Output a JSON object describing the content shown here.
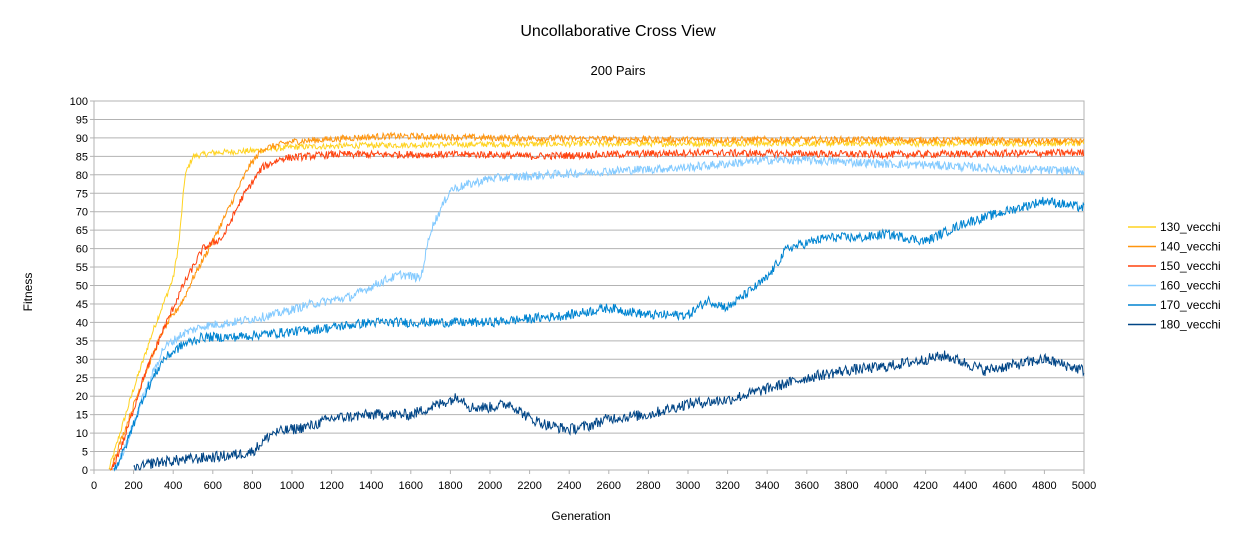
{
  "chart_data": {
    "type": "line",
    "title": "Uncollaborative Cross View",
    "subtitle": "200 Pairs",
    "xlabel": "Generation",
    "ylabel": "Fitness",
    "xlim": [
      0,
      5000
    ],
    "ylim": [
      0,
      100
    ],
    "xticks": [
      0,
      200,
      400,
      600,
      800,
      1000,
      1200,
      1400,
      1600,
      1800,
      2000,
      2200,
      2400,
      2600,
      2800,
      3000,
      3200,
      3400,
      3600,
      3800,
      4000,
      4200,
      4400,
      4600,
      4800,
      5000
    ],
    "yticks": [
      0,
      5,
      10,
      15,
      20,
      25,
      30,
      35,
      40,
      45,
      50,
      55,
      60,
      65,
      70,
      75,
      80,
      85,
      90,
      95,
      100
    ],
    "grid": true,
    "legend_position": "right",
    "series": [
      {
        "name": "130_vecchi",
        "color": "#ffd320",
        "noise": 0.8,
        "points": [
          [
            75,
            0
          ],
          [
            120,
            8
          ],
          [
            200,
            22
          ],
          [
            300,
            38
          ],
          [
            400,
            52
          ],
          [
            430,
            62
          ],
          [
            460,
            80
          ],
          [
            500,
            85
          ],
          [
            600,
            86
          ],
          [
            800,
            86.5
          ],
          [
            1000,
            87.5
          ],
          [
            1400,
            88
          ],
          [
            2000,
            88.3
          ],
          [
            3000,
            88.5
          ],
          [
            4000,
            88.5
          ],
          [
            5000,
            88.5
          ]
        ]
      },
      {
        "name": "140_vecchi",
        "color": "#ff950e",
        "noise": 0.9,
        "points": [
          [
            80,
            0
          ],
          [
            150,
            10
          ],
          [
            250,
            25
          ],
          [
            350,
            38
          ],
          [
            450,
            46
          ],
          [
            500,
            52
          ],
          [
            600,
            62
          ],
          [
            700,
            73
          ],
          [
            780,
            82
          ],
          [
            850,
            87
          ],
          [
            1000,
            89
          ],
          [
            1300,
            90
          ],
          [
            1500,
            90.5
          ],
          [
            2000,
            90
          ],
          [
            3000,
            89.5
          ],
          [
            4000,
            89.5
          ],
          [
            5000,
            89
          ]
        ]
      },
      {
        "name": "150_vecchi",
        "color": "#ff420e",
        "noise": 1.0,
        "points": [
          [
            90,
            0
          ],
          [
            150,
            8
          ],
          [
            250,
            25
          ],
          [
            350,
            38
          ],
          [
            450,
            50
          ],
          [
            550,
            60
          ],
          [
            650,
            63
          ],
          [
            750,
            74
          ],
          [
            850,
            82
          ],
          [
            950,
            84.5
          ],
          [
            1200,
            85.5
          ],
          [
            2000,
            85.5
          ],
          [
            2200,
            85
          ],
          [
            2600,
            85.5
          ],
          [
            3000,
            86
          ],
          [
            4000,
            85.5
          ],
          [
            5000,
            86
          ]
        ]
      },
      {
        "name": "160_vecchi",
        "color": "#83caff",
        "noise": 1.2,
        "points": [
          [
            100,
            0
          ],
          [
            150,
            5
          ],
          [
            250,
            20
          ],
          [
            350,
            33
          ],
          [
            450,
            37
          ],
          [
            550,
            39
          ],
          [
            700,
            40
          ],
          [
            900,
            42
          ],
          [
            1100,
            45
          ],
          [
            1300,
            47
          ],
          [
            1450,
            51
          ],
          [
            1550,
            53
          ],
          [
            1650,
            52
          ],
          [
            1700,
            65
          ],
          [
            1800,
            76
          ],
          [
            2000,
            79
          ],
          [
            2300,
            80
          ],
          [
            2600,
            81
          ],
          [
            3000,
            82
          ],
          [
            3400,
            84
          ],
          [
            3600,
            84
          ],
          [
            3800,
            83.5
          ],
          [
            4000,
            83
          ],
          [
            4300,
            82.5
          ],
          [
            4600,
            81.5
          ],
          [
            5000,
            81
          ]
        ]
      },
      {
        "name": "170_vecchi",
        "color": "#0084d1",
        "noise": 1.3,
        "points": [
          [
            100,
            0
          ],
          [
            150,
            5
          ],
          [
            250,
            20
          ],
          [
            350,
            30
          ],
          [
            450,
            34
          ],
          [
            550,
            36
          ],
          [
            700,
            36
          ],
          [
            900,
            37
          ],
          [
            1100,
            38
          ],
          [
            1400,
            40
          ],
          [
            1700,
            40
          ],
          [
            2000,
            40
          ],
          [
            2400,
            42
          ],
          [
            2600,
            44
          ],
          [
            2800,
            42
          ],
          [
            3000,
            42
          ],
          [
            3100,
            46
          ],
          [
            3200,
            44
          ],
          [
            3300,
            48
          ],
          [
            3400,
            52
          ],
          [
            3500,
            60
          ],
          [
            3700,
            63
          ],
          [
            3900,
            63
          ],
          [
            4000,
            64
          ],
          [
            4200,
            62
          ],
          [
            4400,
            67
          ],
          [
            4600,
            70
          ],
          [
            4800,
            73
          ],
          [
            5000,
            71
          ]
        ]
      },
      {
        "name": "180_vecchi",
        "color": "#004586",
        "noise": 1.5,
        "points": [
          [
            200,
            0
          ],
          [
            300,
            2
          ],
          [
            500,
            3
          ],
          [
            700,
            4
          ],
          [
            800,
            5
          ],
          [
            900,
            10
          ],
          [
            1000,
            11
          ],
          [
            1100,
            12
          ],
          [
            1200,
            14
          ],
          [
            1400,
            15
          ],
          [
            1600,
            15
          ],
          [
            1800,
            19
          ],
          [
            1850,
            20
          ],
          [
            1900,
            17
          ],
          [
            2000,
            17
          ],
          [
            2100,
            18
          ],
          [
            2200,
            14
          ],
          [
            2300,
            12
          ],
          [
            2400,
            11
          ],
          [
            2500,
            12
          ],
          [
            2600,
            14
          ],
          [
            2800,
            15
          ],
          [
            3000,
            18
          ],
          [
            3200,
            19
          ],
          [
            3400,
            22
          ],
          [
            3600,
            25
          ],
          [
            3800,
            27
          ],
          [
            4000,
            28
          ],
          [
            4200,
            30
          ],
          [
            4300,
            31
          ],
          [
            4400,
            29
          ],
          [
            4500,
            27
          ],
          [
            4600,
            28
          ],
          [
            4800,
            30
          ],
          [
            5000,
            27
          ]
        ]
      }
    ]
  }
}
